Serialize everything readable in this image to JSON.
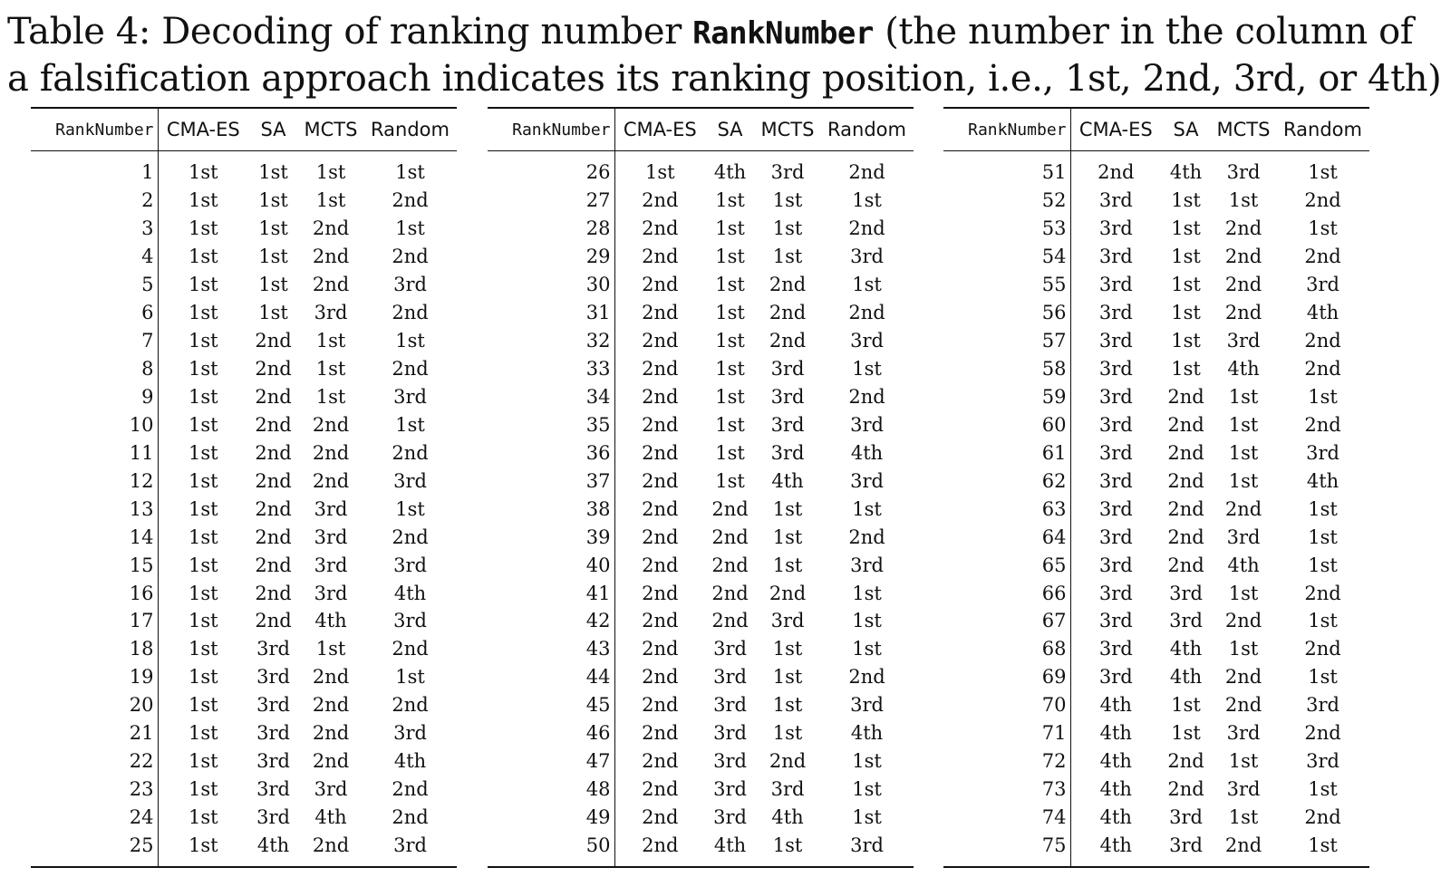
{
  "caption": {
    "prefix": "Table 4: Decoding of ranking number ",
    "code": "RankNumber",
    "line1_rest": " (the number in the column of",
    "line2": "a falsification approach indicates its ranking position, i.e., 1st, 2nd, 3rd, or 4th)"
  },
  "headers": [
    "RankNumber",
    "CMA-ES",
    "SA",
    "MCTS",
    "Random"
  ],
  "tables": [
    {
      "rows": [
        [
          "1",
          "1st",
          "1st",
          "1st",
          "1st"
        ],
        [
          "2",
          "1st",
          "1st",
          "1st",
          "2nd"
        ],
        [
          "3",
          "1st",
          "1st",
          "2nd",
          "1st"
        ],
        [
          "4",
          "1st",
          "1st",
          "2nd",
          "2nd"
        ],
        [
          "5",
          "1st",
          "1st",
          "2nd",
          "3rd"
        ],
        [
          "6",
          "1st",
          "1st",
          "3rd",
          "2nd"
        ],
        [
          "7",
          "1st",
          "2nd",
          "1st",
          "1st"
        ],
        [
          "8",
          "1st",
          "2nd",
          "1st",
          "2nd"
        ],
        [
          "9",
          "1st",
          "2nd",
          "1st",
          "3rd"
        ],
        [
          "10",
          "1st",
          "2nd",
          "2nd",
          "1st"
        ],
        [
          "11",
          "1st",
          "2nd",
          "2nd",
          "2nd"
        ],
        [
          "12",
          "1st",
          "2nd",
          "2nd",
          "3rd"
        ],
        [
          "13",
          "1st",
          "2nd",
          "3rd",
          "1st"
        ],
        [
          "14",
          "1st",
          "2nd",
          "3rd",
          "2nd"
        ],
        [
          "15",
          "1st",
          "2nd",
          "3rd",
          "3rd"
        ],
        [
          "16",
          "1st",
          "2nd",
          "3rd",
          "4th"
        ],
        [
          "17",
          "1st",
          "2nd",
          "4th",
          "3rd"
        ],
        [
          "18",
          "1st",
          "3rd",
          "1st",
          "2nd"
        ],
        [
          "19",
          "1st",
          "3rd",
          "2nd",
          "1st"
        ],
        [
          "20",
          "1st",
          "3rd",
          "2nd",
          "2nd"
        ],
        [
          "21",
          "1st",
          "3rd",
          "2nd",
          "3rd"
        ],
        [
          "22",
          "1st",
          "3rd",
          "2nd",
          "4th"
        ],
        [
          "23",
          "1st",
          "3rd",
          "3rd",
          "2nd"
        ],
        [
          "24",
          "1st",
          "3rd",
          "4th",
          "2nd"
        ],
        [
          "25",
          "1st",
          "4th",
          "2nd",
          "3rd"
        ]
      ]
    },
    {
      "rows": [
        [
          "26",
          "1st",
          "4th",
          "3rd",
          "2nd"
        ],
        [
          "27",
          "2nd",
          "1st",
          "1st",
          "1st"
        ],
        [
          "28",
          "2nd",
          "1st",
          "1st",
          "2nd"
        ],
        [
          "29",
          "2nd",
          "1st",
          "1st",
          "3rd"
        ],
        [
          "30",
          "2nd",
          "1st",
          "2nd",
          "1st"
        ],
        [
          "31",
          "2nd",
          "1st",
          "2nd",
          "2nd"
        ],
        [
          "32",
          "2nd",
          "1st",
          "2nd",
          "3rd"
        ],
        [
          "33",
          "2nd",
          "1st",
          "3rd",
          "1st"
        ],
        [
          "34",
          "2nd",
          "1st",
          "3rd",
          "2nd"
        ],
        [
          "35",
          "2nd",
          "1st",
          "3rd",
          "3rd"
        ],
        [
          "36",
          "2nd",
          "1st",
          "3rd",
          "4th"
        ],
        [
          "37",
          "2nd",
          "1st",
          "4th",
          "3rd"
        ],
        [
          "38",
          "2nd",
          "2nd",
          "1st",
          "1st"
        ],
        [
          "39",
          "2nd",
          "2nd",
          "1st",
          "2nd"
        ],
        [
          "40",
          "2nd",
          "2nd",
          "1st",
          "3rd"
        ],
        [
          "41",
          "2nd",
          "2nd",
          "2nd",
          "1st"
        ],
        [
          "42",
          "2nd",
          "2nd",
          "3rd",
          "1st"
        ],
        [
          "43",
          "2nd",
          "3rd",
          "1st",
          "1st"
        ],
        [
          "44",
          "2nd",
          "3rd",
          "1st",
          "2nd"
        ],
        [
          "45",
          "2nd",
          "3rd",
          "1st",
          "3rd"
        ],
        [
          "46",
          "2nd",
          "3rd",
          "1st",
          "4th"
        ],
        [
          "47",
          "2nd",
          "3rd",
          "2nd",
          "1st"
        ],
        [
          "48",
          "2nd",
          "3rd",
          "3rd",
          "1st"
        ],
        [
          "49",
          "2nd",
          "3rd",
          "4th",
          "1st"
        ],
        [
          "50",
          "2nd",
          "4th",
          "1st",
          "3rd"
        ]
      ]
    },
    {
      "rows": [
        [
          "51",
          "2nd",
          "4th",
          "3rd",
          "1st"
        ],
        [
          "52",
          "3rd",
          "1st",
          "1st",
          "2nd"
        ],
        [
          "53",
          "3rd",
          "1st",
          "2nd",
          "1st"
        ],
        [
          "54",
          "3rd",
          "1st",
          "2nd",
          "2nd"
        ],
        [
          "55",
          "3rd",
          "1st",
          "2nd",
          "3rd"
        ],
        [
          "56",
          "3rd",
          "1st",
          "2nd",
          "4th"
        ],
        [
          "57",
          "3rd",
          "1st",
          "3rd",
          "2nd"
        ],
        [
          "58",
          "3rd",
          "1st",
          "4th",
          "2nd"
        ],
        [
          "59",
          "3rd",
          "2nd",
          "1st",
          "1st"
        ],
        [
          "60",
          "3rd",
          "2nd",
          "1st",
          "2nd"
        ],
        [
          "61",
          "3rd",
          "2nd",
          "1st",
          "3rd"
        ],
        [
          "62",
          "3rd",
          "2nd",
          "1st",
          "4th"
        ],
        [
          "63",
          "3rd",
          "2nd",
          "2nd",
          "1st"
        ],
        [
          "64",
          "3rd",
          "2nd",
          "3rd",
          "1st"
        ],
        [
          "65",
          "3rd",
          "2nd",
          "4th",
          "1st"
        ],
        [
          "66",
          "3rd",
          "3rd",
          "1st",
          "2nd"
        ],
        [
          "67",
          "3rd",
          "3rd",
          "2nd",
          "1st"
        ],
        [
          "68",
          "3rd",
          "4th",
          "1st",
          "2nd"
        ],
        [
          "69",
          "3rd",
          "4th",
          "2nd",
          "1st"
        ],
        [
          "70",
          "4th",
          "1st",
          "2nd",
          "3rd"
        ],
        [
          "71",
          "4th",
          "1st",
          "3rd",
          "2nd"
        ],
        [
          "72",
          "4th",
          "2nd",
          "1st",
          "3rd"
        ],
        [
          "73",
          "4th",
          "2nd",
          "3rd",
          "1st"
        ],
        [
          "74",
          "4th",
          "3rd",
          "1st",
          "2nd"
        ],
        [
          "75",
          "4th",
          "3rd",
          "2nd",
          "1st"
        ]
      ]
    }
  ]
}
